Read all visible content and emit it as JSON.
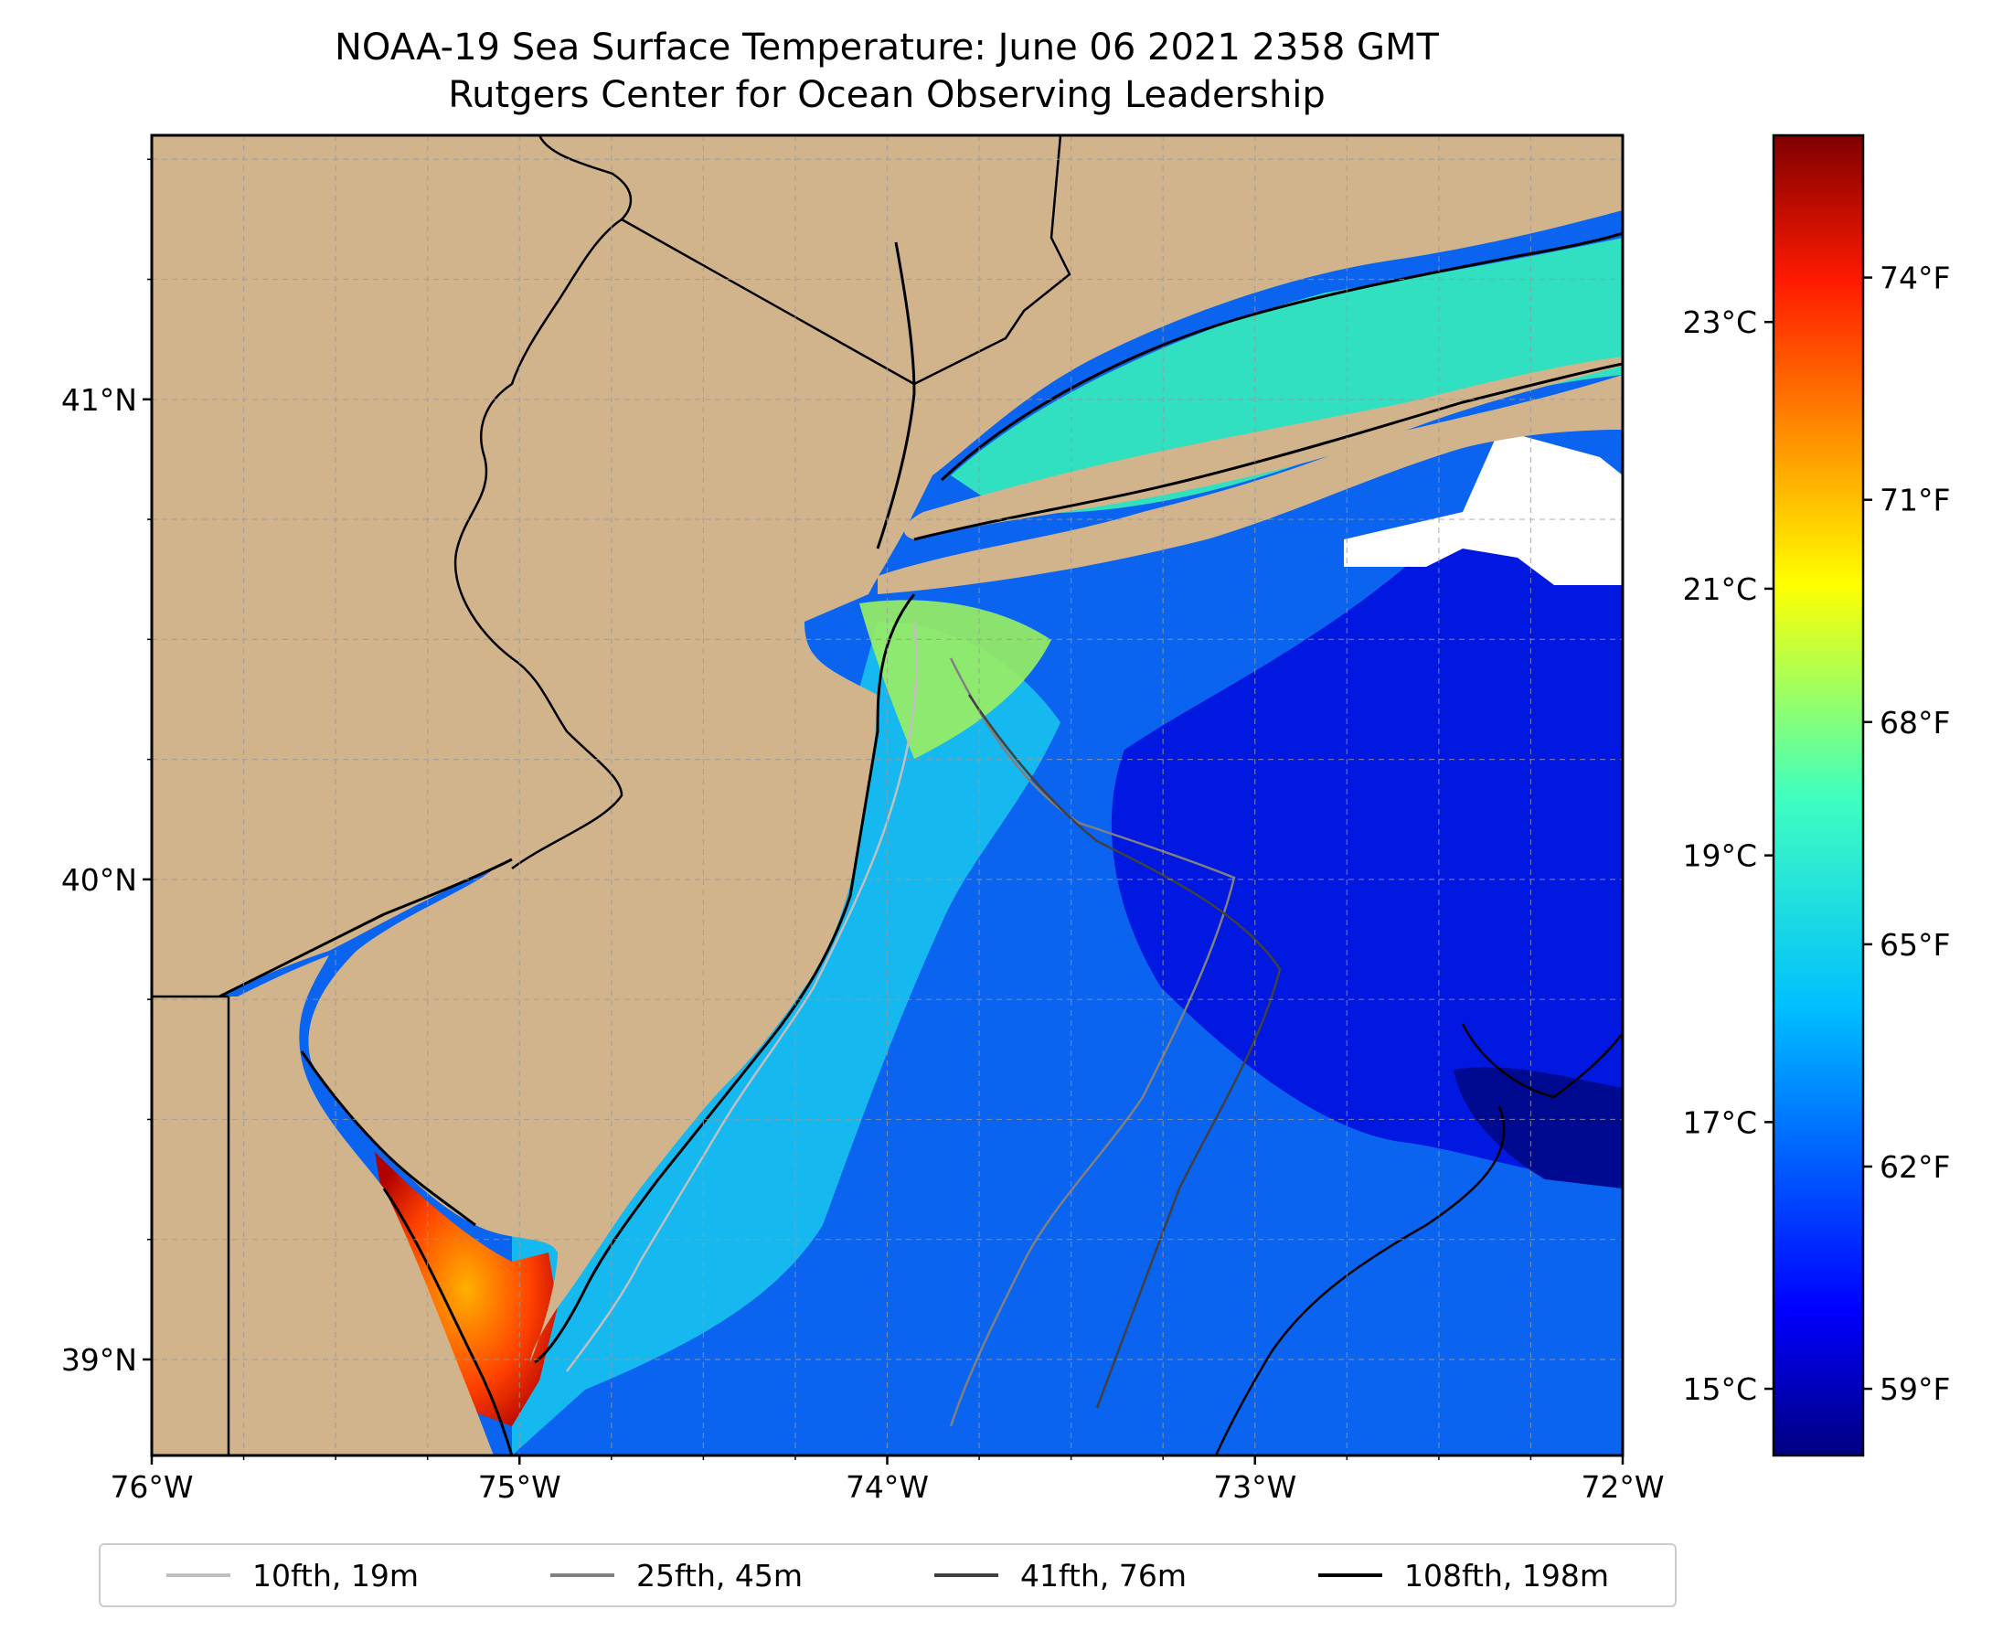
{
  "title": {
    "line1": "NOAA-19 Sea Surface Temperature: June 06 2021 2358 GMT",
    "line2": "Rutgers Center for Ocean Observing Leadership"
  },
  "map": {
    "lon_range": [
      -76,
      -72
    ],
    "lat_range": [
      38.8,
      41.55
    ],
    "lon_ticks": [
      "76°W",
      "75°W",
      "74°W",
      "73°W",
      "72°W"
    ],
    "lat_ticks": [
      "39°N",
      "40°N",
      "41°N"
    ],
    "land_color": "#d2b48c",
    "grid": true,
    "colormap": "jet"
  },
  "colorbar": {
    "celsius_ticks": [
      "15°C",
      "17°C",
      "19°C",
      "21°C",
      "23°C"
    ],
    "fahrenheit_ticks": [
      "59°F",
      "62°F",
      "65°F",
      "68°F",
      "71°F",
      "74°F"
    ],
    "range_celsius": [
      14.5,
      24.4
    ]
  },
  "legend": {
    "items": [
      {
        "label": "10fth, 19m",
        "color": "#bfbfbf"
      },
      {
        "label": "25fth, 45m",
        "color": "#808080"
      },
      {
        "label": "41fth, 76m",
        "color": "#404040"
      },
      {
        "label": "108fth, 198m",
        "color": "#000000"
      }
    ]
  }
}
